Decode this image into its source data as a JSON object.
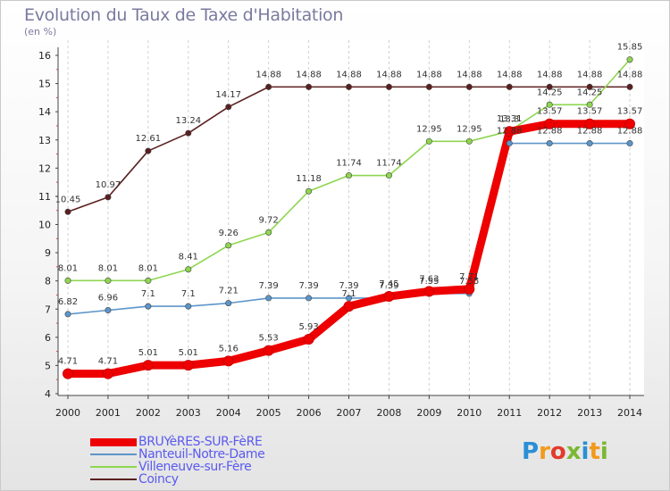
{
  "chart_data": {
    "type": "line",
    "title": "Evolution du Taux de Taxe d'Habitation",
    "unit_label": "(en %)",
    "x": [
      "2000",
      "2001",
      "2002",
      "2003",
      "2004",
      "2005",
      "2006",
      "2007",
      "2008",
      "2009",
      "2010",
      "2011",
      "2012",
      "2013",
      "2014"
    ],
    "yticks": [
      "4",
      "5",
      "6",
      "7",
      "8",
      "9",
      "10",
      "11",
      "12",
      "13",
      "14",
      "15",
      "16"
    ],
    "ylim": [
      4,
      16
    ],
    "grid": "vertical dashed",
    "legend_position": "bottom-left",
    "series": [
      {
        "name": "Coincy",
        "color": "#5b1f1f",
        "values": [
          10.45,
          10.97,
          12.61,
          13.24,
          14.17,
          14.88,
          14.88,
          14.88,
          14.88,
          14.88,
          14.88,
          14.88,
          14.88,
          14.88,
          14.88
        ],
        "labels": [
          "10.45",
          "10.97",
          "12.61",
          "13.24",
          "14.17",
          "14.88",
          "14.88",
          "14.88",
          "14.88",
          "14.88",
          "14.88",
          "14.88",
          "14.88",
          "14.88",
          "14.88"
        ]
      },
      {
        "name": "Villeneuve-sur-Fère",
        "color": "#8ed650",
        "values": [
          8.01,
          8.01,
          8.01,
          8.41,
          9.26,
          9.72,
          11.18,
          11.74,
          11.74,
          12.95,
          12.95,
          13.31,
          14.25,
          14.25,
          15.85
        ],
        "labels": [
          "8.01",
          "8.01",
          "8.01",
          "8.41",
          "9.26",
          "9.72",
          "11.18",
          "11.74",
          "11.74",
          "12.95",
          "12.95",
          "13.31",
          "14.25",
          "14.25",
          "15.85"
        ]
      },
      {
        "name": "Nanteuil-Notre-Dame",
        "color": "#5d95c9",
        "values": [
          6.82,
          6.96,
          7.1,
          7.1,
          7.21,
          7.39,
          7.39,
          7.39,
          7.39,
          7.55,
          7.55,
          12.88,
          12.88,
          12.88,
          12.88
        ],
        "labels": [
          "6.82",
          "6.96",
          "7.1",
          "7.1",
          "7.21",
          "7.39",
          "7.39",
          "7.39",
          "7.39",
          "7.55",
          "7.55",
          "12.88",
          "12.88",
          "12.88",
          "12.88"
        ]
      },
      {
        "name": "BRUYèRES-SUR-FèRE",
        "color": "#ee0000",
        "values": [
          4.71,
          4.71,
          5.01,
          5.01,
          5.16,
          5.53,
          5.93,
          7.1,
          7.45,
          7.63,
          7.71,
          13.3,
          13.57,
          13.57,
          13.57
        ],
        "labels": [
          "4.71",
          "4.71",
          "5.01",
          "5.01",
          "5.16",
          "5.53",
          "5.93",
          "7.1",
          "7.45",
          "7.63",
          "7.71",
          "13.3",
          "13.57",
          "13.57",
          "13.57"
        ]
      }
    ]
  },
  "legend": [
    {
      "label": "BRUYèRES-SUR-FèRE",
      "color": "#ee0000",
      "thickness": 9
    },
    {
      "label": "Nanteuil-Notre-Dame",
      "color": "#5d95c9",
      "thickness": 2
    },
    {
      "label": "Villeneuve-sur-Fère",
      "color": "#8ed650",
      "thickness": 2
    },
    {
      "label": "Coincy",
      "color": "#5b1f1f",
      "thickness": 2
    }
  ],
  "logo": {
    "letters": [
      "P",
      "r",
      "o",
      "x",
      "i",
      "t",
      "i"
    ],
    "colors": [
      "#2a8fd6",
      "#f29a1c",
      "#e23b2a",
      "#7ab832",
      "#2a8fd6",
      "#f29a1c",
      "#7ab832"
    ]
  }
}
